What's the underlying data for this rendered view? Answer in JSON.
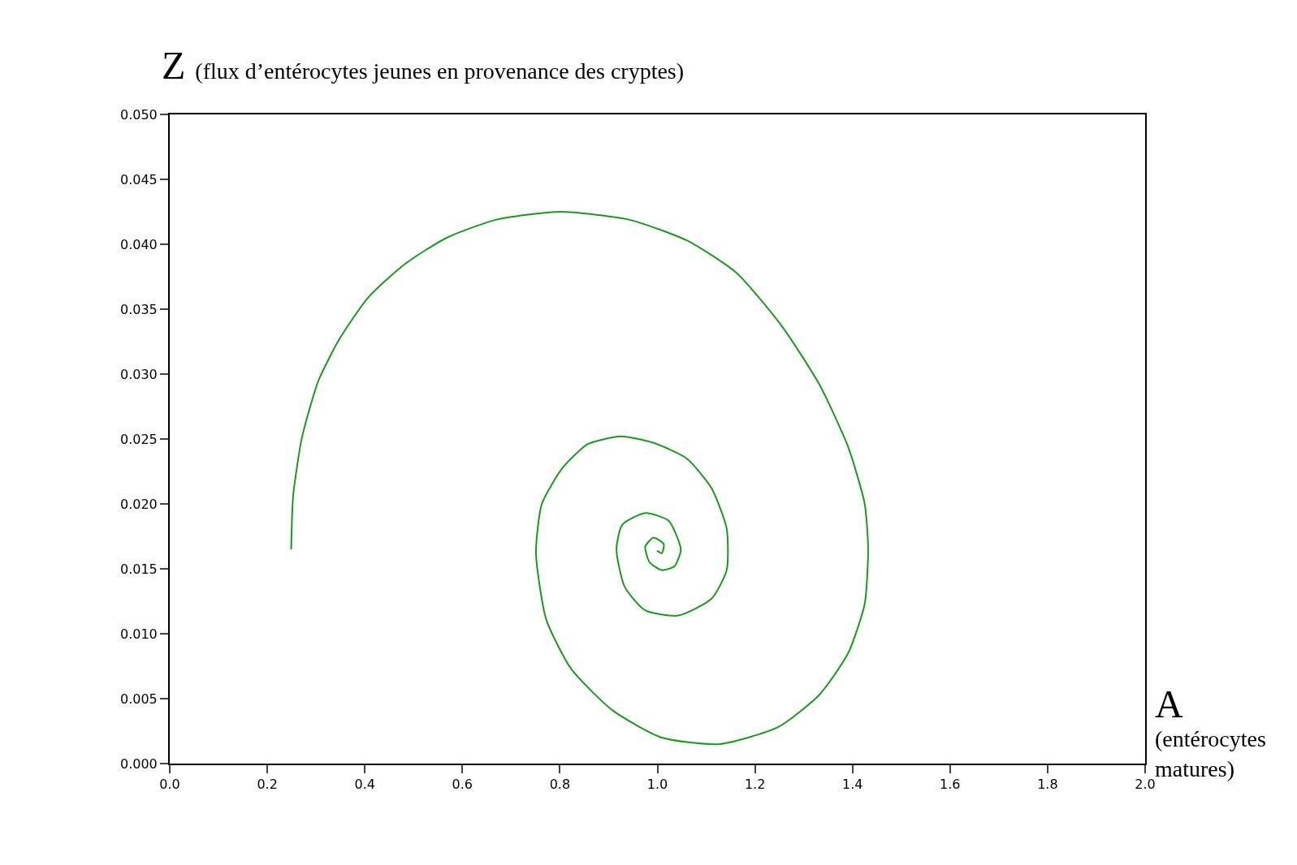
{
  "chart_data": {
    "type": "line",
    "xlabel": "A (entérocytes matures)",
    "ylabel": "Z (flux d’entérocytes jeunes en provenance des cryptes)",
    "xlim": [
      0.0,
      2.0
    ],
    "xticks": [
      {
        "value": 0,
        "label": "0.0"
      },
      {
        "value": 0.2,
        "label": "0.2"
      },
      {
        "value": 0.4,
        "label": "0.4"
      },
      {
        "value": 0.6,
        "label": "0.6"
      },
      {
        "value": 0.8,
        "label": "0.8"
      },
      {
        "value": 1.0,
        "label": "1.0"
      },
      {
        "value": 1.2,
        "label": "1.2"
      },
      {
        "value": 1.4,
        "label": "1.4"
      },
      {
        "value": 1.6,
        "label": "1.6"
      },
      {
        "value": 1.8,
        "label": "1.8"
      },
      {
        "value": 2.0,
        "label": "2.0"
      }
    ],
    "ylim": [
      0.0,
      0.05
    ],
    "yticks": [
      {
        "value": 0,
        "label": "0.000"
      },
      {
        "value": 0.005,
        "label": "0.005"
      },
      {
        "value": 0.01,
        "label": "0.010"
      },
      {
        "value": 0.015,
        "label": "0.015"
      },
      {
        "value": 0.02,
        "label": "0.020"
      },
      {
        "value": 0.025,
        "label": "0.025"
      },
      {
        "value": 0.03,
        "label": "0.030"
      },
      {
        "value": 0.035,
        "label": "0.035"
      },
      {
        "value": 0.04,
        "label": "0.040"
      },
      {
        "value": 0.045,
        "label": "0.045"
      },
      {
        "value": 0.05,
        "label": "0.050"
      }
    ],
    "marker": "none",
    "line_style": "solid",
    "series": [
      {
        "color": "#1a9a1a",
        "x": [
          0.249,
          0.253,
          0.271,
          0.305,
          0.348,
          0.407,
          0.483,
          0.568,
          0.67,
          0.801,
          0.941,
          1.06,
          1.162,
          1.255,
          1.332,
          1.391,
          1.425,
          1.432,
          1.425,
          1.391,
          1.332,
          1.247,
          1.128,
          1.009,
          0.908,
          0.823,
          0.772,
          0.751,
          0.763,
          0.806,
          0.857,
          0.925,
          0.992,
          1.06,
          1.111,
          1.142,
          1.142,
          1.111,
          1.043,
          0.975,
          0.933,
          0.916,
          0.928,
          0.975,
          1.023,
          1.048,
          1.035,
          1.009,
          0.984,
          0.975,
          0.992,
          1.013,
          1.009,
          0.999
        ],
        "values": [
          0.0165,
          0.0206,
          0.0251,
          0.0295,
          0.0327,
          0.0359,
          0.0385,
          0.0405,
          0.0419,
          0.0425,
          0.0419,
          0.0403,
          0.0378,
          0.0337,
          0.0292,
          0.0244,
          0.02,
          0.0165,
          0.0123,
          0.0085,
          0.0053,
          0.0028,
          0.0015,
          0.002,
          0.0041,
          0.0073,
          0.0111,
          0.0162,
          0.02,
          0.0228,
          0.0246,
          0.0252,
          0.0247,
          0.0235,
          0.0212,
          0.0181,
          0.0149,
          0.0127,
          0.0114,
          0.0118,
          0.0136,
          0.0165,
          0.0184,
          0.0193,
          0.0187,
          0.0165,
          0.0152,
          0.0149,
          0.0155,
          0.0167,
          0.0174,
          0.0169,
          0.0162,
          0.0164
        ]
      }
    ]
  }
}
